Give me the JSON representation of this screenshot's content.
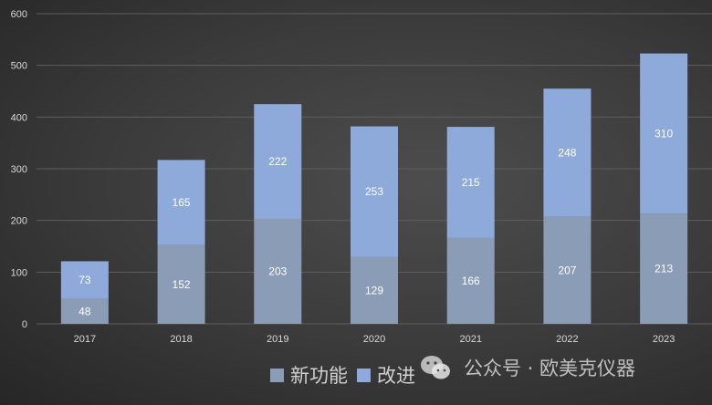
{
  "chart_data": {
    "type": "bar",
    "stacked": true,
    "categories": [
      "2017",
      "2018",
      "2019",
      "2020",
      "2021",
      "2022",
      "2023"
    ],
    "series": [
      {
        "name": "新功能",
        "values": [
          48,
          152,
          203,
          129,
          166,
          207,
          213
        ],
        "color": "#8b9cb6"
      },
      {
        "name": "改进",
        "values": [
          73,
          165,
          222,
          253,
          215,
          248,
          310
        ],
        "color": "#8eaadb"
      }
    ],
    "yticks": [
      0,
      100,
      200,
      300,
      400,
      500,
      600
    ],
    "ylim": [
      0,
      600
    ],
    "grid": true,
    "legend": "bottom",
    "title": "",
    "xlabel": "",
    "ylabel": ""
  },
  "watermark": {
    "text": "公众号 · 欧美克仪器",
    "icon": "wechat-icon"
  }
}
